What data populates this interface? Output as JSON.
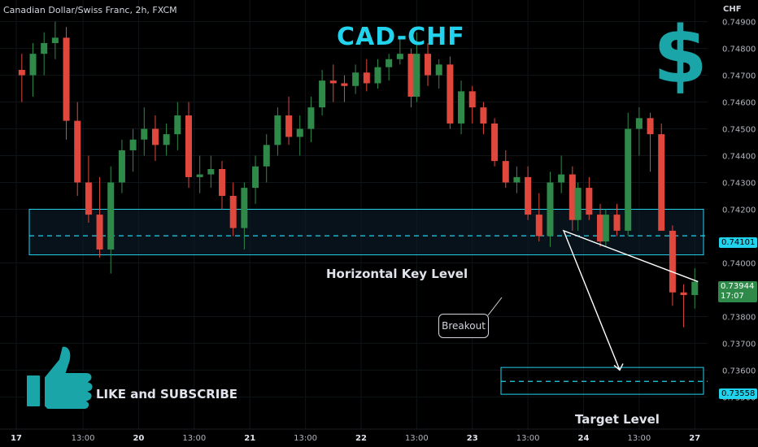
{
  "header": {
    "symbol": "Canadian Dollar/Swiss Franc, 2h, FXCM"
  },
  "annotations": {
    "title": "CAD-CHF",
    "key_level_label": "Horizontal Key Level",
    "target_label": "Target Level",
    "breakout_label": "Breakout",
    "like_label": "LIKE and SUBSCRIBE",
    "dollar_symbol": "$",
    "thumb_icon": "thumbs-up-icon"
  },
  "colors": {
    "up": "#2f8a4a",
    "down": "#e0483e",
    "accent": "#22d3ee",
    "zone_fill": "#0c2030",
    "grid": "#0f1418"
  },
  "chart_data": {
    "type": "candlestick",
    "y_axis": {
      "unit": "CHF",
      "range": [
        0.7348,
        0.7492
      ],
      "ticks": [
        0.749,
        0.748,
        0.747,
        0.746,
        0.745,
        0.744,
        0.743,
        0.742,
        0.74,
        0.738,
        0.737,
        0.736,
        0.735
      ],
      "tick_labels": [
        "0.74900",
        "0.74800",
        "0.74700",
        "0.74600",
        "0.74500",
        "0.74400",
        "0.74300",
        "0.74200",
        "0.74000",
        "0.73800",
        "0.73700",
        "0.73600",
        "0.73500"
      ]
    },
    "x_axis": {
      "range": [
        0,
        136
      ],
      "ticks": [
        {
          "x": 0,
          "label": "17"
        },
        {
          "x": 12,
          "label": "13:00"
        },
        {
          "x": 22,
          "label": "20"
        },
        {
          "x": 32,
          "label": "13:00"
        },
        {
          "x": 42,
          "label": "21"
        },
        {
          "x": 52,
          "label": "13:00"
        },
        {
          "x": 62,
          "label": "22"
        },
        {
          "x": 72,
          "label": "13:00"
        },
        {
          "x": 82,
          "label": "23"
        },
        {
          "x": 92,
          "label": "13:00"
        },
        {
          "x": 102,
          "label": "24"
        },
        {
          "x": 112,
          "label": "13:00"
        },
        {
          "x": 122,
          "label": "27"
        }
      ]
    },
    "candles": [
      [
        0.7472,
        0.7478,
        0.746,
        0.747
      ],
      [
        0.747,
        0.7482,
        0.7462,
        0.7478
      ],
      [
        0.7478,
        0.7486,
        0.747,
        0.7482
      ],
      [
        0.7482,
        0.749,
        0.7476,
        0.7484
      ],
      [
        0.7484,
        0.7488,
        0.7446,
        0.7453
      ],
      [
        0.7453,
        0.746,
        0.7425,
        0.743
      ],
      [
        0.743,
        0.744,
        0.7415,
        0.7418
      ],
      [
        0.7418,
        0.7432,
        0.7402,
        0.7405
      ],
      [
        0.7405,
        0.7436,
        0.7396,
        0.743
      ],
      [
        0.743,
        0.7446,
        0.7426,
        0.7442
      ],
      [
        0.7442,
        0.745,
        0.7434,
        0.7446
      ],
      [
        0.7446,
        0.7458,
        0.744,
        0.745
      ],
      [
        0.745,
        0.7455,
        0.7438,
        0.7444
      ],
      [
        0.7444,
        0.7452,
        0.744,
        0.7448
      ],
      [
        0.7448,
        0.746,
        0.7442,
        0.7455
      ],
      [
        0.7455,
        0.746,
        0.7428,
        0.7432
      ],
      [
        0.7432,
        0.744,
        0.7426,
        0.7433
      ],
      [
        0.7433,
        0.744,
        0.7428,
        0.7435
      ],
      [
        0.7435,
        0.7438,
        0.742,
        0.7425
      ],
      [
        0.7425,
        0.743,
        0.741,
        0.7413
      ],
      [
        0.7413,
        0.743,
        0.7405,
        0.7428
      ],
      [
        0.7428,
        0.744,
        0.7422,
        0.7436
      ],
      [
        0.7436,
        0.7448,
        0.743,
        0.7444
      ],
      [
        0.7444,
        0.7458,
        0.744,
        0.7455
      ],
      [
        0.7455,
        0.7462,
        0.7444,
        0.7447
      ],
      [
        0.7447,
        0.7455,
        0.744,
        0.745
      ],
      [
        0.745,
        0.7462,
        0.7445,
        0.7458
      ],
      [
        0.7458,
        0.7472,
        0.7455,
        0.7468
      ],
      [
        0.7468,
        0.7474,
        0.746,
        0.7467
      ],
      [
        0.7467,
        0.747,
        0.746,
        0.7466
      ],
      [
        0.7466,
        0.7474,
        0.7463,
        0.7471
      ],
      [
        0.7471,
        0.7476,
        0.7464,
        0.7467
      ],
      [
        0.7467,
        0.7476,
        0.7465,
        0.7473
      ],
      [
        0.7473,
        0.7478,
        0.7468,
        0.7476
      ],
      [
        0.7476,
        0.7484,
        0.7474,
        0.7478
      ],
      [
        0.7478,
        0.748,
        0.7458,
        0.7462
      ],
      [
        0.7462,
        0.7486,
        0.746,
        0.7478
      ],
      [
        0.7478,
        0.7482,
        0.7466,
        0.747
      ],
      [
        0.747,
        0.7476,
        0.7465,
        0.7474
      ],
      [
        0.7474,
        0.7477,
        0.745,
        0.7452
      ],
      [
        0.7452,
        0.7468,
        0.7448,
        0.7464
      ],
      [
        0.7464,
        0.7466,
        0.7452,
        0.7458
      ],
      [
        0.7458,
        0.746,
        0.7448,
        0.7452
      ],
      [
        0.7452,
        0.7454,
        0.7436,
        0.7438
      ],
      [
        0.7438,
        0.7442,
        0.7428,
        0.743
      ],
      [
        0.743,
        0.7436,
        0.7426,
        0.7432
      ],
      [
        0.7432,
        0.7436,
        0.7416,
        0.7418
      ],
      [
        0.7418,
        0.7426,
        0.7408,
        0.741
      ],
      [
        0.741,
        0.7434,
        0.7406,
        0.743
      ],
      [
        0.743,
        0.744,
        0.7426,
        0.7433
      ],
      [
        0.7433,
        0.7436,
        0.7412,
        0.7416
      ],
      [
        0.7416,
        0.743,
        0.7412,
        0.7428
      ],
      [
        0.7428,
        0.7432,
        0.7416,
        0.7418
      ],
      [
        0.7418,
        0.7422,
        0.7406,
        0.7408
      ],
      [
        0.7408,
        0.742,
        0.7406,
        0.7418
      ],
      [
        0.7418,
        0.7422,
        0.741,
        0.7412
      ],
      [
        0.7412,
        0.7456,
        0.741,
        0.745
      ],
      [
        0.745,
        0.7458,
        0.744,
        0.7454
      ],
      [
        0.7454,
        0.7456,
        0.7434,
        0.7448
      ],
      [
        0.7448,
        0.7452,
        0.7412,
        0.7412
      ],
      [
        0.7412,
        0.7414,
        0.7384,
        0.7389
      ],
      [
        0.7389,
        0.7392,
        0.7376,
        0.7388
      ],
      [
        0.7388,
        0.7398,
        0.7383,
        0.7393
      ]
    ],
    "candle_x": [
      1,
      3,
      5,
      7,
      9,
      11,
      13,
      15,
      17,
      19,
      21,
      23,
      25,
      27,
      29,
      31,
      33,
      35,
      37,
      39,
      41,
      43,
      45,
      47,
      49,
      51,
      53,
      55,
      57,
      59,
      61,
      63,
      65,
      67,
      69,
      71,
      72,
      74,
      76,
      78,
      80,
      82,
      84,
      86,
      88,
      90,
      92,
      94,
      96,
      98,
      100,
      101,
      103,
      105,
      106,
      108,
      110,
      112,
      114,
      116,
      118,
      120,
      122
    ],
    "key_level": {
      "zone": [
        0.7403,
        0.742
      ],
      "line": 0.74101,
      "label": "0.74101"
    },
    "target_level": {
      "zone": [
        0.7351,
        0.7361
      ],
      "line": 0.73558,
      "label": "0.73558"
    },
    "current_price": {
      "value": 0.73944,
      "label": "0.73944",
      "countdown": "17:07"
    },
    "projection": [
      [
        0.7393,
        0
      ],
      [
        0.7412,
        1
      ],
      [
        0.736,
        2
      ]
    ]
  }
}
